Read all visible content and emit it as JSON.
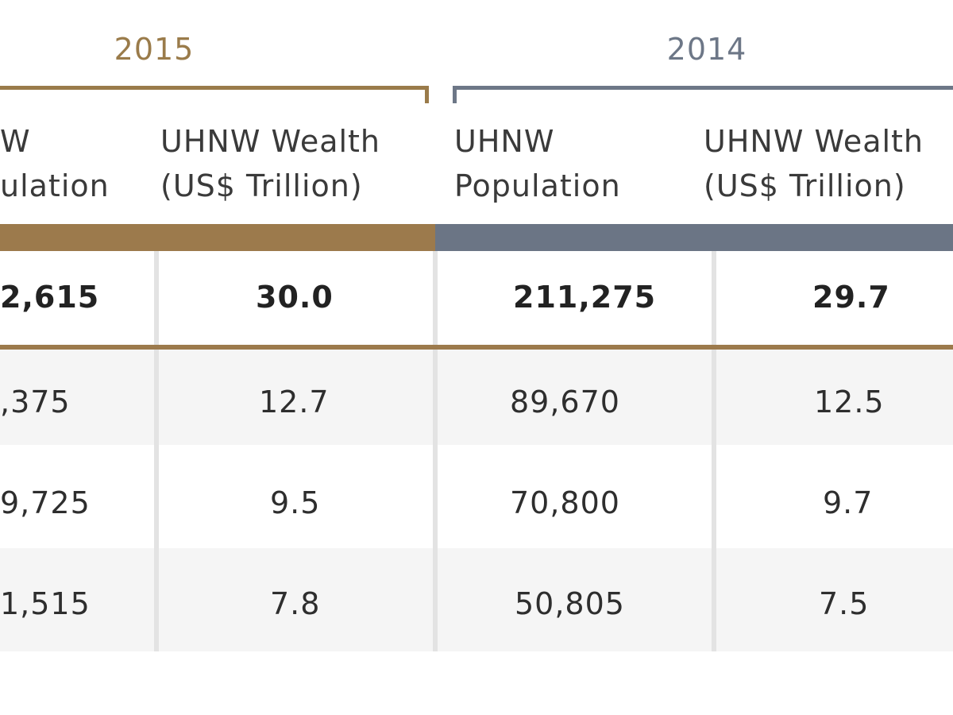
{
  "colors": {
    "gold": "#9a7b4a",
    "gold_band": "#9c7a4c",
    "slate": "#6d7787",
    "slate_band": "#6b7585",
    "row_alt": "#f5f5f5",
    "divider": "#e3e3e3"
  },
  "chart_data": {
    "type": "table",
    "groups": [
      {
        "year": "2015",
        "color": "#9a7b4a"
      },
      {
        "year": "2014",
        "color": "#6d7787"
      }
    ],
    "columns": [
      {
        "group": "2015",
        "label_line1": "W",
        "label_line2": "ulation"
      },
      {
        "group": "2015",
        "label_line1": "UHNW Wealth",
        "label_line2": "(US$ Trillion)"
      },
      {
        "group": "2014",
        "label_line1": "UHNW",
        "label_line2": "Population"
      },
      {
        "group": "2014",
        "label_line1": "UHNW Wealth",
        "label_line2": "(US$ Trillion)"
      }
    ],
    "rows": [
      {
        "bold": true,
        "cells": [
          "2,615",
          "30.0",
          "211,275",
          "29.7"
        ]
      },
      {
        "bold": false,
        "cells": [
          ",375",
          "12.7",
          "89,670",
          "12.5"
        ]
      },
      {
        "bold": false,
        "cells": [
          "9,725",
          "9.5",
          "70,800",
          "9.7"
        ]
      },
      {
        "bold": false,
        "cells": [
          "1,515",
          "7.8",
          "50,805",
          "7.5"
        ]
      }
    ]
  }
}
